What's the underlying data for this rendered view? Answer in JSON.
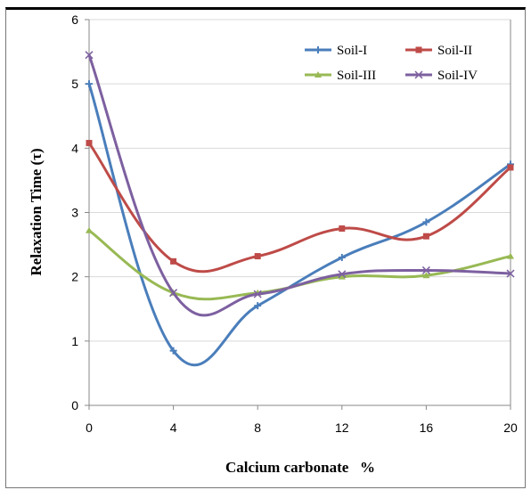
{
  "chart_data": {
    "type": "line",
    "title": "",
    "xlabel": "Calcium carbonate   %",
    "ylabel": "Relaxation Time (τ)",
    "x": [
      0,
      4,
      8,
      12,
      16,
      20
    ],
    "xticks": [
      "0",
      "4",
      "8",
      "12",
      "16",
      "20"
    ],
    "yticks": [
      "0",
      "1",
      "2",
      "3",
      "4",
      "5",
      "6"
    ],
    "xlim": [
      0,
      20
    ],
    "ylim": [
      0,
      6
    ],
    "grid": "horizontal",
    "legend_position": "top-right",
    "series": [
      {
        "name": "Soil-I",
        "color": "#4a7ebb",
        "marker": "plus",
        "values": [
          5.0,
          0.85,
          1.55,
          2.3,
          2.85,
          3.75
        ]
      },
      {
        "name": "Soil-II",
        "color": "#be4b48",
        "marker": "square",
        "values": [
          4.08,
          2.24,
          2.32,
          2.75,
          2.63,
          3.7
        ]
      },
      {
        "name": "Soil-III",
        "color": "#98b954",
        "marker": "triangle",
        "values": [
          2.72,
          1.75,
          1.75,
          2.0,
          2.02,
          2.32
        ]
      },
      {
        "name": "Soil-IV",
        "color": "#7d60a0",
        "marker": "x",
        "values": [
          5.45,
          1.75,
          1.73,
          2.04,
          2.1,
          2.05
        ]
      }
    ]
  }
}
